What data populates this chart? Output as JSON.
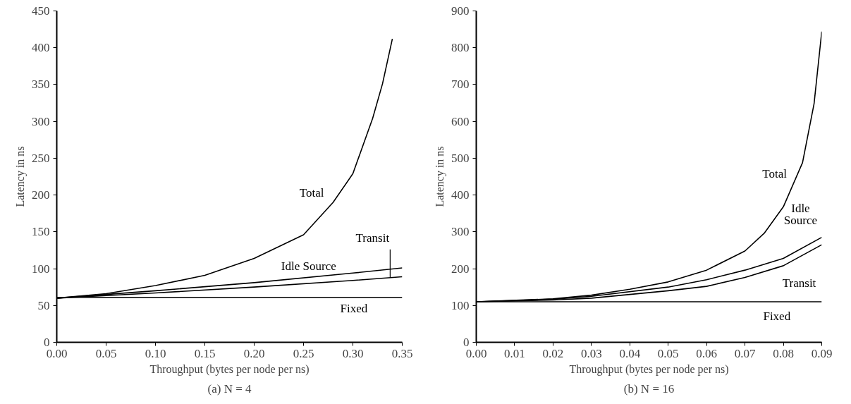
{
  "chart_data": [
    {
      "type": "line",
      "title": "(a) N = 4",
      "xlabel": "Throughput (bytes per node per ns)",
      "ylabel": "Latency in ns",
      "xlim": [
        0,
        0.35
      ],
      "ylim": [
        0,
        450
      ],
      "xticks": [
        {
          "value": 0,
          "label": "0.00"
        },
        0.05,
        {
          "value": 0.1,
          "label": "0.10"
        },
        0.15,
        {
          "value": 0.2,
          "label": "0.20"
        },
        0.25,
        {
          "value": 0.3,
          "label": "0.30"
        },
        0.35
      ],
      "yticks": [
        0,
        50,
        100,
        150,
        200,
        250,
        300,
        350,
        400,
        450
      ],
      "grid": false,
      "legend": false,
      "marker": "none",
      "line_style": "solid",
      "series": [
        {
          "name": "Total",
          "color": "#000000",
          "x": [
            0,
            0.05,
            0.1,
            0.15,
            0.2,
            0.25,
            0.28,
            0.3,
            0.32,
            0.33,
            0.34
          ],
          "values": [
            60,
            66,
            77,
            91,
            114,
            146,
            190,
            229,
            304,
            351,
            412
          ]
        },
        {
          "name": "Idle Source",
          "color": "#000000",
          "x": [
            0,
            0.1,
            0.2,
            0.3,
            0.35
          ],
          "values": [
            60,
            70,
            81,
            94,
            101
          ]
        },
        {
          "name": "Transit",
          "color": "#000000",
          "x": [
            0,
            0.1,
            0.2,
            0.3,
            0.35
          ],
          "values": [
            60,
            67,
            75,
            84,
            89
          ]
        },
        {
          "name": "Fixed",
          "color": "#000000",
          "x": [
            0,
            0.35
          ],
          "values": [
            61,
            61
          ]
        }
      ]
    },
    {
      "type": "line",
      "title": "(b) N = 16",
      "xlabel": "Throughput (bytes per node per ns)",
      "ylabel": "Latency in ns",
      "xlim": [
        0,
        0.09
      ],
      "ylim": [
        0,
        900
      ],
      "xticks": [
        {
          "value": 0,
          "label": "0.00"
        },
        0.01,
        0.02,
        0.03,
        0.04,
        0.05,
        0.06,
        0.07,
        0.08,
        0.09
      ],
      "yticks": [
        0,
        100,
        200,
        300,
        400,
        500,
        600,
        700,
        800,
        900
      ],
      "grid": false,
      "legend": false,
      "marker": "none",
      "line_style": "solid",
      "series": [
        {
          "name": "Total",
          "color": "#000000",
          "x": [
            0,
            0.02,
            0.03,
            0.04,
            0.05,
            0.06,
            0.07,
            0.075,
            0.08,
            0.085,
            0.088,
            0.09
          ],
          "values": [
            110,
            118,
            128,
            144,
            164,
            196,
            248,
            296,
            368,
            488,
            648,
            844
          ]
        },
        {
          "name": "Idle\nSource",
          "color": "#000000",
          "x": [
            0,
            0.02,
            0.03,
            0.05,
            0.06,
            0.07,
            0.08,
            0.09
          ],
          "values": [
            110,
            117,
            125,
            150,
            170,
            196,
            228,
            285
          ]
        },
        {
          "name": "Transit",
          "color": "#000000",
          "x": [
            0,
            0.02,
            0.03,
            0.05,
            0.06,
            0.07,
            0.08,
            0.09
          ],
          "values": [
            110,
            115,
            120,
            140,
            152,
            176,
            208,
            265
          ]
        },
        {
          "name": "Fixed",
          "color": "#000000",
          "x": [
            0,
            0.09
          ],
          "values": [
            110,
            110
          ]
        }
      ]
    }
  ]
}
